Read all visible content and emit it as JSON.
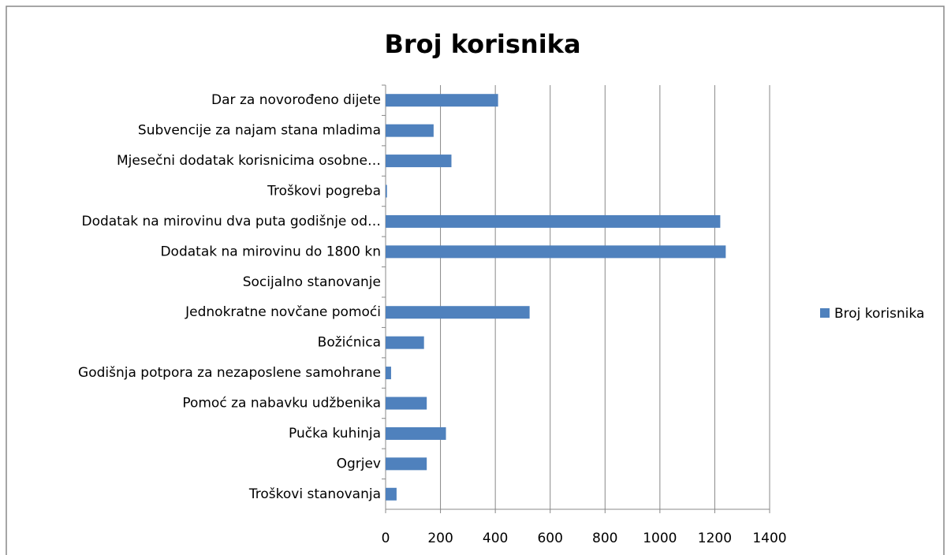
{
  "chart_data": {
    "type": "bar",
    "orientation": "horizontal",
    "title": "Broj korisnika",
    "categories": [
      "Dar za novorođeno dijete",
      "Subvencije za najam stana mladima",
      "Mjesečni dodatak korisnicima osobne…",
      "Troškovi pogreba",
      "Dodatak na mirovinu dva puta godišnje od…",
      "Dodatak na mirovinu do 1800 kn",
      "Socijalno stanovanje",
      "Jednokratne novčane pomoći",
      "Božićnica",
      "Godišnja potpora za nezaposlene samohrane",
      "Pomoć za nabavku udžbenika",
      "Pučka kuhinja",
      "Ogrjev",
      "Troškovi stanovanja"
    ],
    "series": [
      {
        "name": "Broj korisnika",
        "color": "#4f81bd",
        "values": [
          410,
          175,
          240,
          5,
          1220,
          1240,
          0,
          525,
          140,
          20,
          150,
          220,
          150,
          40
        ]
      }
    ],
    "xlim": [
      0,
      1400
    ],
    "xticks": [
      0,
      200,
      400,
      600,
      800,
      1000,
      1200,
      1400
    ],
    "grid": true,
    "legend": "right"
  }
}
